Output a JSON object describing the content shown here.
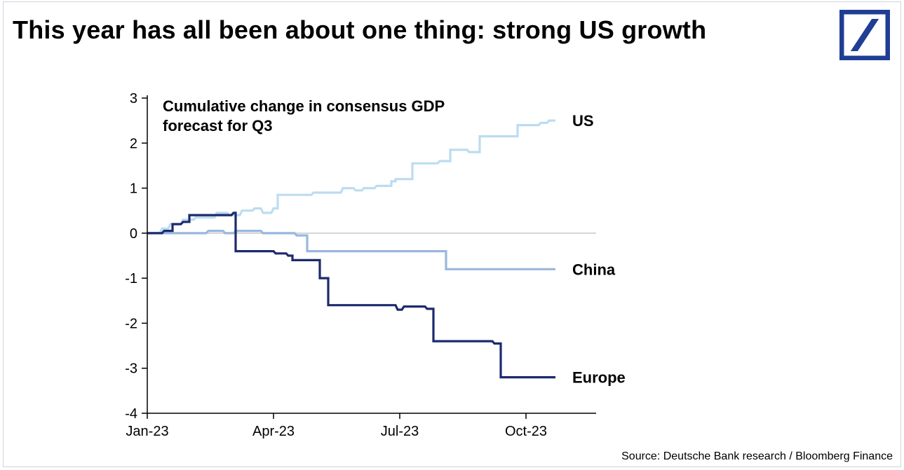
{
  "title": "This year has all been about one thing: strong US growth",
  "subtitle": "Cumulative change in consensus GDP forecast for Q3",
  "source": "Source: Deutsche Bank research / Bloomberg Finance",
  "logo": {
    "border_color": "#1f3e94",
    "slash_color": "#1f3e94",
    "bg": "#ffffff"
  },
  "chart": {
    "type": "line-step",
    "background_color": "#ffffff",
    "grid_color": "#c8c8c8",
    "axis_color": "#000000",
    "title_fontsize": 36,
    "subtitle_fontsize": 22,
    "label_fontsize": 22,
    "tick_fontsize": 20,
    "line_width": 3.2,
    "x_domain": [
      0,
      10.5
    ],
    "x_ticks": [
      {
        "pos": 0,
        "label": "Jan-23"
      },
      {
        "pos": 3,
        "label": "Apr-23"
      },
      {
        "pos": 6,
        "label": "Jul-23"
      },
      {
        "pos": 9,
        "label": "Oct-23"
      }
    ],
    "y_domain": [
      -4,
      3
    ],
    "y_ticks": [
      -4,
      -3,
      -2,
      -1,
      0,
      1,
      2,
      3
    ],
    "series": [
      {
        "name": "US",
        "label": "US",
        "color": "#bcdcf0",
        "points": [
          [
            0.0,
            0.0
          ],
          [
            0.3,
            0.0
          ],
          [
            0.35,
            0.1
          ],
          [
            0.5,
            0.1
          ],
          [
            0.55,
            0.2
          ],
          [
            0.8,
            0.2
          ],
          [
            0.85,
            0.3
          ],
          [
            1.1,
            0.3
          ],
          [
            1.15,
            0.35
          ],
          [
            1.6,
            0.35
          ],
          [
            1.65,
            0.45
          ],
          [
            1.9,
            0.45
          ],
          [
            1.95,
            0.4
          ],
          [
            2.2,
            0.4
          ],
          [
            2.25,
            0.5
          ],
          [
            2.5,
            0.5
          ],
          [
            2.55,
            0.55
          ],
          [
            2.7,
            0.55
          ],
          [
            2.75,
            0.45
          ],
          [
            2.95,
            0.45
          ],
          [
            3.0,
            0.55
          ],
          [
            3.1,
            0.55
          ],
          [
            3.1,
            0.85
          ],
          [
            3.9,
            0.85
          ],
          [
            3.95,
            0.9
          ],
          [
            4.6,
            0.9
          ],
          [
            4.65,
            1.0
          ],
          [
            4.9,
            1.0
          ],
          [
            4.95,
            0.95
          ],
          [
            5.1,
            0.95
          ],
          [
            5.15,
            1.0
          ],
          [
            5.4,
            1.0
          ],
          [
            5.45,
            1.05
          ],
          [
            5.8,
            1.05
          ],
          [
            5.8,
            1.15
          ],
          [
            5.9,
            1.15
          ],
          [
            5.9,
            1.2
          ],
          [
            6.3,
            1.2
          ],
          [
            6.3,
            1.55
          ],
          [
            6.9,
            1.55
          ],
          [
            6.95,
            1.6
          ],
          [
            7.2,
            1.6
          ],
          [
            7.2,
            1.85
          ],
          [
            7.6,
            1.85
          ],
          [
            7.65,
            1.8
          ],
          [
            7.9,
            1.8
          ],
          [
            7.9,
            2.15
          ],
          [
            8.8,
            2.15
          ],
          [
            8.8,
            2.4
          ],
          [
            9.3,
            2.4
          ],
          [
            9.35,
            2.45
          ],
          [
            9.5,
            2.45
          ],
          [
            9.55,
            2.5
          ],
          [
            9.7,
            2.5
          ]
        ]
      },
      {
        "name": "China",
        "label": "China",
        "color": "#9ab7dc",
        "points": [
          [
            0.0,
            0.0
          ],
          [
            1.4,
            0.0
          ],
          [
            1.45,
            0.05
          ],
          [
            1.8,
            0.05
          ],
          [
            1.85,
            0.0
          ],
          [
            2.05,
            0.0
          ],
          [
            2.1,
            0.05
          ],
          [
            2.7,
            0.05
          ],
          [
            2.75,
            0.0
          ],
          [
            3.5,
            0.0
          ],
          [
            3.55,
            -0.05
          ],
          [
            3.8,
            -0.05
          ],
          [
            3.8,
            -0.4
          ],
          [
            7.1,
            -0.4
          ],
          [
            7.1,
            -0.8
          ],
          [
            9.7,
            -0.8
          ]
        ]
      },
      {
        "name": "Europe",
        "label": "Europe",
        "color": "#1d2a6e",
        "points": [
          [
            0.0,
            0.0
          ],
          [
            0.35,
            0.0
          ],
          [
            0.4,
            0.05
          ],
          [
            0.6,
            0.05
          ],
          [
            0.6,
            0.2
          ],
          [
            0.8,
            0.2
          ],
          [
            0.85,
            0.25
          ],
          [
            1.0,
            0.25
          ],
          [
            1.0,
            0.4
          ],
          [
            2.0,
            0.4
          ],
          [
            2.05,
            0.45
          ],
          [
            2.1,
            0.45
          ],
          [
            2.1,
            -0.4
          ],
          [
            3.0,
            -0.4
          ],
          [
            3.05,
            -0.45
          ],
          [
            3.3,
            -0.45
          ],
          [
            3.35,
            -0.5
          ],
          [
            3.45,
            -0.5
          ],
          [
            3.45,
            -0.6
          ],
          [
            4.1,
            -0.6
          ],
          [
            4.1,
            -1.0
          ],
          [
            4.3,
            -1.0
          ],
          [
            4.3,
            -1.6
          ],
          [
            5.9,
            -1.6
          ],
          [
            5.95,
            -1.7
          ],
          [
            6.05,
            -1.7
          ],
          [
            6.1,
            -1.63
          ],
          [
            6.6,
            -1.63
          ],
          [
            6.65,
            -1.68
          ],
          [
            6.8,
            -1.68
          ],
          [
            6.8,
            -2.4
          ],
          [
            8.2,
            -2.4
          ],
          [
            8.25,
            -2.45
          ],
          [
            8.4,
            -2.45
          ],
          [
            8.4,
            -3.2
          ],
          [
            9.7,
            -3.2
          ]
        ]
      }
    ],
    "series_labels": [
      {
        "name": "US",
        "x": 10.0,
        "y": 2.5
      },
      {
        "name": "China",
        "x": 10.0,
        "y": -0.8
      },
      {
        "name": "Europe",
        "x": 10.0,
        "y": -3.2
      }
    ]
  }
}
